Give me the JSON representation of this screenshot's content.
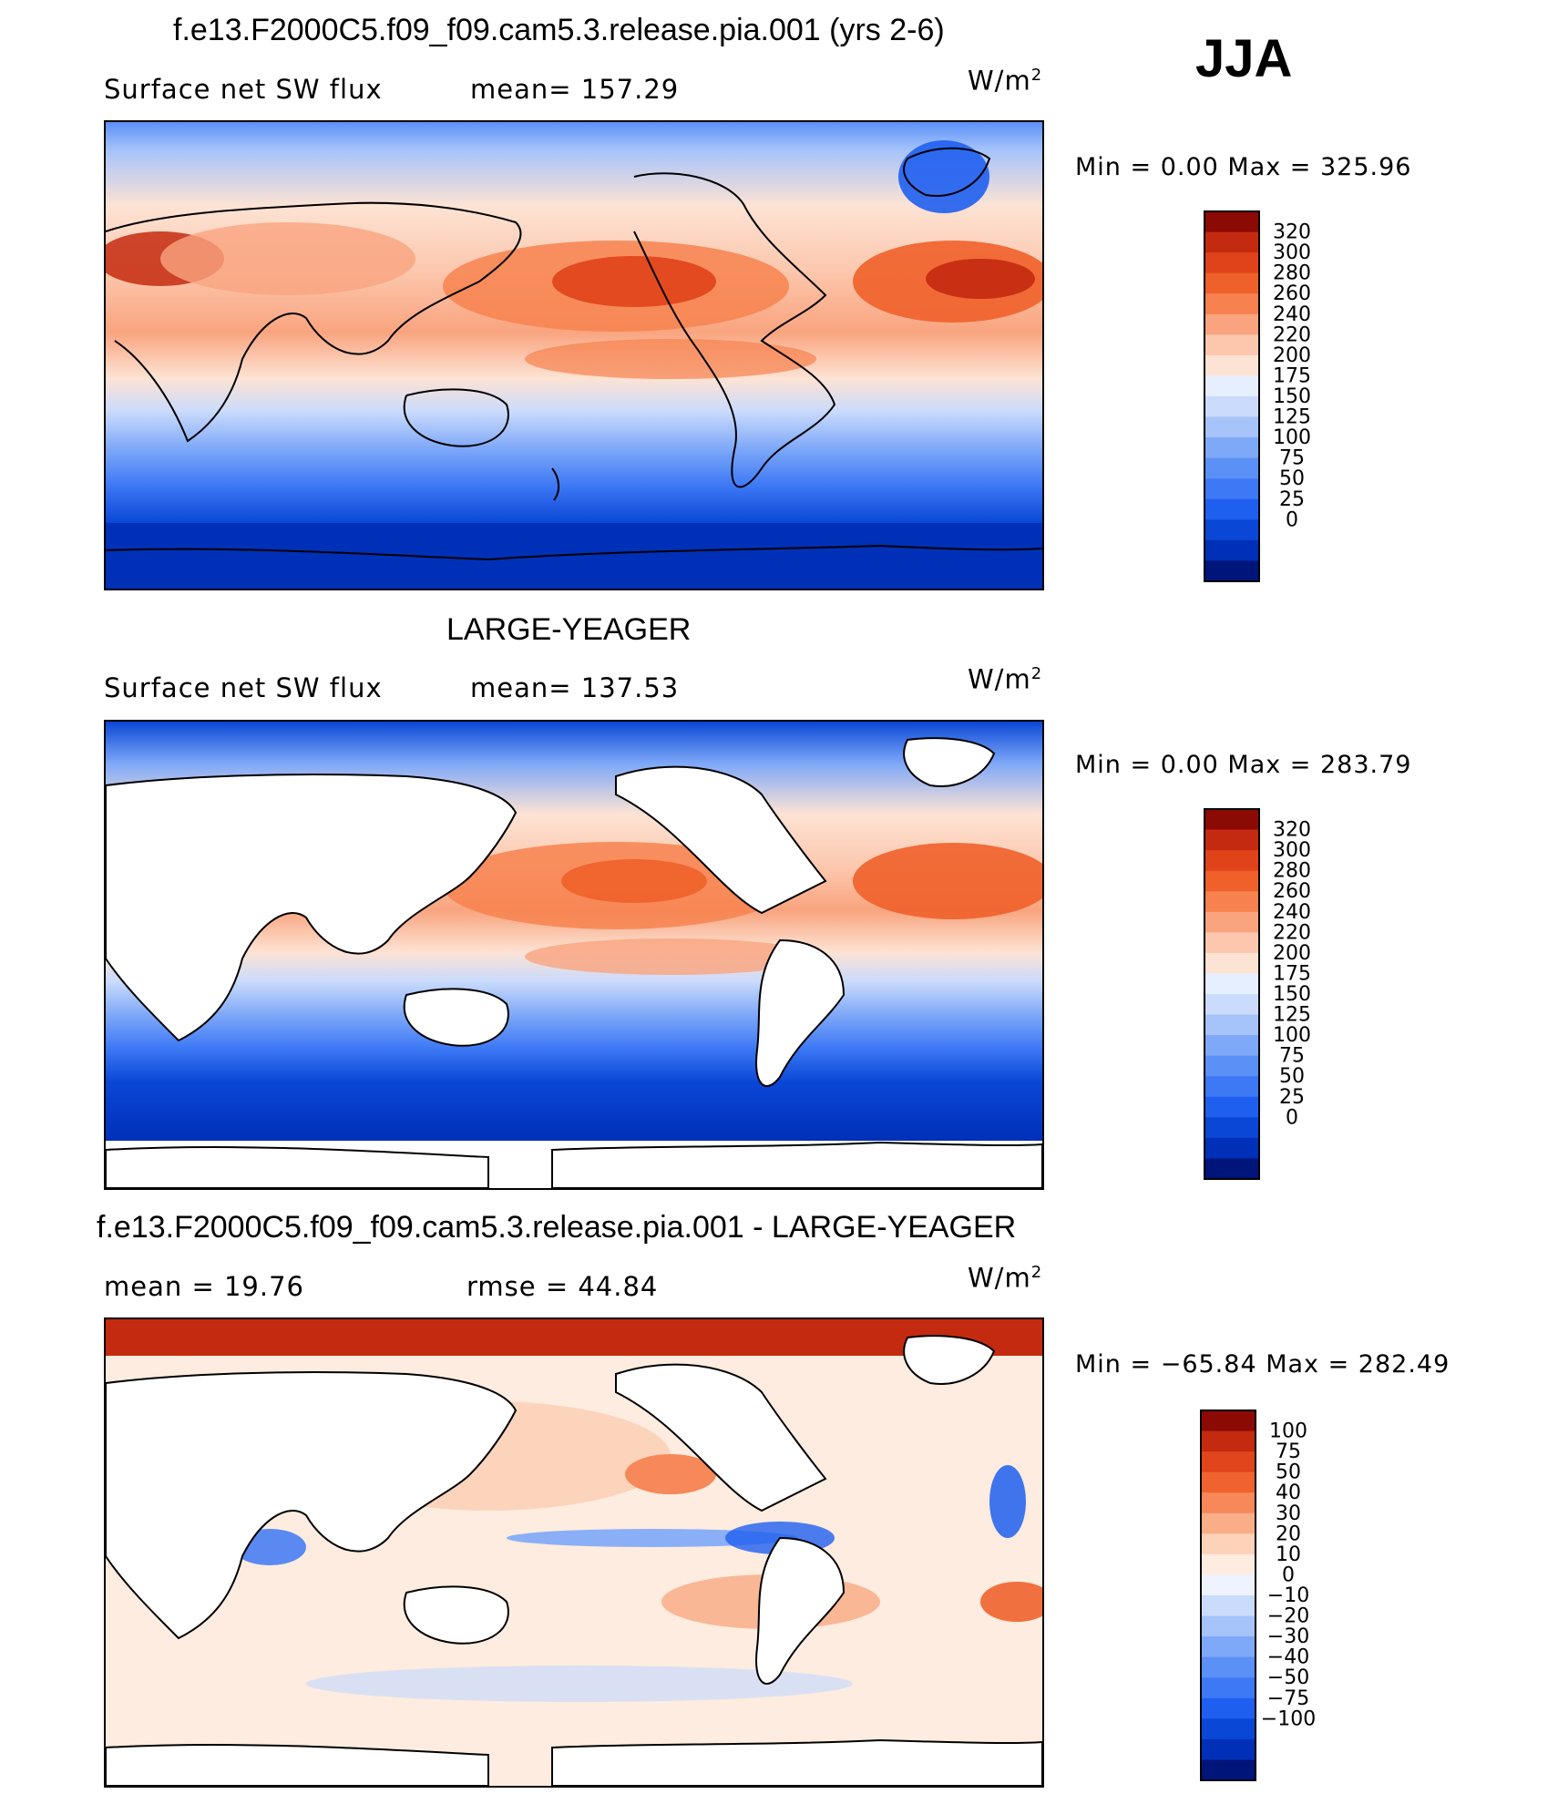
{
  "season": "JJA",
  "colors": {
    "abs_scale": [
      "#00157a",
      "#0030b8",
      "#0a47d6",
      "#1f5ff0",
      "#3d78f5",
      "#5b90f7",
      "#7ea8f8",
      "#a6c3fa",
      "#cadbfc",
      "#e6efff",
      "#fde3d4",
      "#fcc7ad",
      "#f9a47f",
      "#f7824f",
      "#f0602a",
      "#e0421a",
      "#c42a0f",
      "#8c0a04"
    ],
    "diff_scale": [
      "#00157a",
      "#0030b8",
      "#0a47d6",
      "#1f5ff0",
      "#3d78f5",
      "#5b90f7",
      "#7ea8f8",
      "#a6c3fa",
      "#cadbfc",
      "#eef3ff",
      "#fdecdf",
      "#fcd2b8",
      "#f9ae88",
      "#f7885a",
      "#f0632e",
      "#e0451b",
      "#c42a0f",
      "#8c0a04"
    ]
  },
  "panels": [
    {
      "title": "f.e13.F2000C5.f09_f09.cam5.3.release.pia.001 (yrs 2-6)",
      "left_label": "Surface net SW flux",
      "mid_label": "mean= 157.29",
      "units": "W/m",
      "units_sup": "2",
      "minmax": "Min =     0.00  Max  =  325.96",
      "colorbar_ticks": [
        "320",
        "300",
        "280",
        "260",
        "240",
        "220",
        "200",
        "175",
        "150",
        "125",
        "100",
        "75",
        "50",
        "25",
        "0"
      ],
      "missing_land": false
    },
    {
      "title": "LARGE-YEAGER",
      "left_label": "Surface net SW flux",
      "mid_label": "mean= 137.53",
      "units": "W/m",
      "units_sup": "2",
      "minmax": "Min =     0.00  Max  =  283.79",
      "colorbar_ticks": [
        "320",
        "300",
        "280",
        "260",
        "240",
        "220",
        "200",
        "175",
        "150",
        "125",
        "100",
        "75",
        "50",
        "25",
        "0"
      ],
      "missing_land": true
    },
    {
      "title": "f.e13.F2000C5.f09_f09.cam5.3.release.pia.001 - LARGE-YEAGER",
      "left_label": "mean  =    19.76",
      "mid_label": "rmse  =    44.84",
      "units": "W/m",
      "units_sup": "2",
      "minmax": "Min  = −65.84  Max  =  282.49",
      "colorbar_ticks": [
        "100",
        "75",
        "50",
        "40",
        "30",
        "20",
        "10",
        "0",
        "−10",
        "−20",
        "−30",
        "−40",
        "−50",
        "−75",
        "−100"
      ],
      "missing_land": true
    }
  ]
}
